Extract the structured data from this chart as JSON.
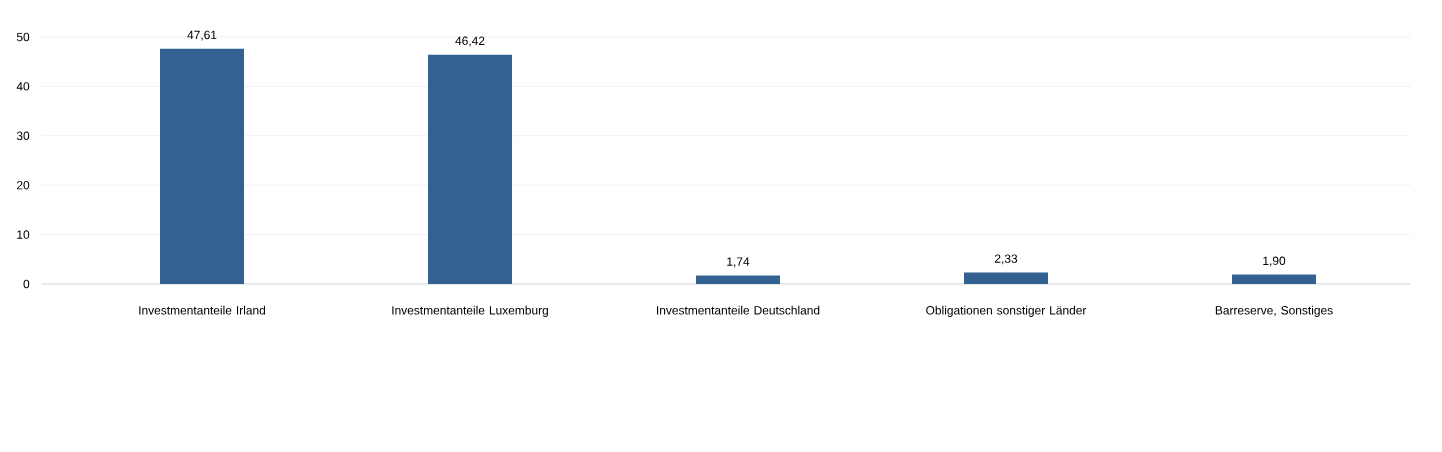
{
  "chart_data": {
    "type": "bar",
    "categories": [
      "Investmentanteile Irland",
      "Investmentanteile Luxemburg",
      "Investmentanteile Deutschland",
      "Obligationen sonstiger Länder",
      "Barreserve, Sonstiges"
    ],
    "values": [
      47.61,
      46.42,
      1.74,
      2.33,
      1.9
    ],
    "value_labels": [
      "47,61",
      "46,42",
      "1,74",
      "2,33",
      "1,90"
    ],
    "color": "#336192",
    "ylim": [
      0,
      50
    ],
    "yticks": [
      0,
      10,
      20,
      30,
      40,
      50
    ],
    "grid": "y"
  }
}
